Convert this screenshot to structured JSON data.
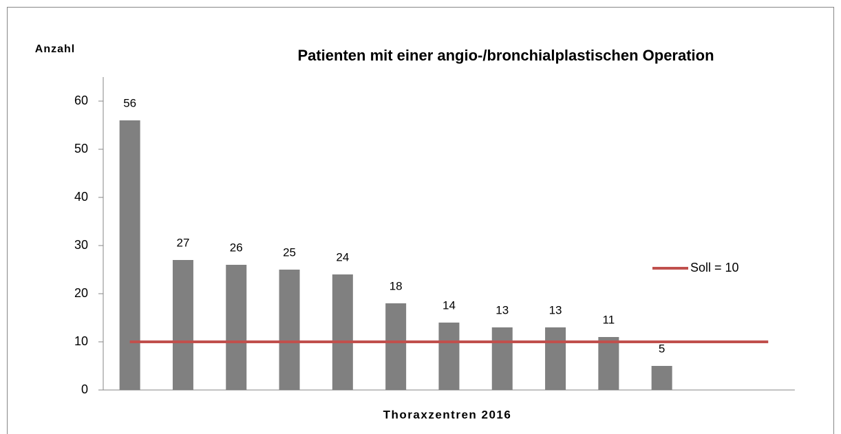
{
  "chart_data": {
    "type": "bar",
    "title": "Patienten mit einer angio-/bronchialplastischen Operation",
    "y_label": "Anzahl",
    "x_label": "Thoraxzentren 2016",
    "categories": [
      null,
      null,
      null,
      null,
      null,
      null,
      null,
      null,
      null,
      null,
      null,
      null,
      null
    ],
    "values": [
      56,
      27,
      26,
      25,
      24,
      18,
      14,
      13,
      13,
      11,
      5,
      null,
      null
    ],
    "color": "#808080",
    "series": [
      {
        "name": "Soll = 10",
        "type": "line",
        "color": "#c0504d",
        "values": [
          10,
          10,
          10,
          10,
          10,
          10,
          10,
          10,
          10,
          10,
          10,
          10,
          10
        ]
      }
    ],
    "ylim": [
      0,
      65
    ],
    "yticks": [
      0,
      10,
      20,
      30,
      40,
      50,
      60
    ],
    "grid": false,
    "legend": "right"
  }
}
